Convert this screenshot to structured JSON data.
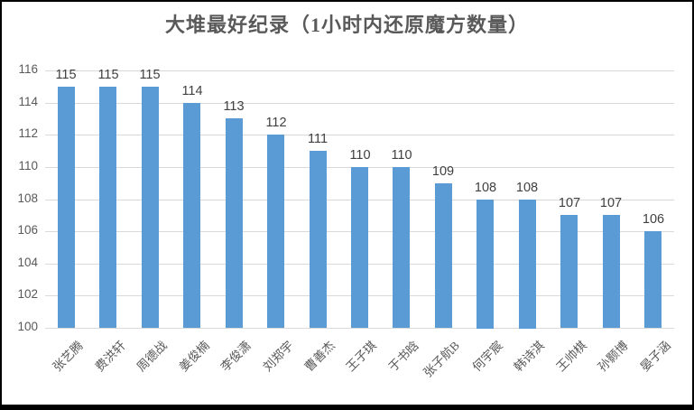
{
  "frame": {
    "border_color": "#000000",
    "background_color": "#ffffff"
  },
  "chart_data": {
    "type": "bar",
    "title": "大堆最好纪录（1小时内还原魔方数量）",
    "categories": [
      "张艺腾",
      "费洪轩",
      "周德战",
      "姜俊楠",
      "李俊潇",
      "刘郑宇",
      "曹善杰",
      "王子琪",
      "于书晗",
      "张子航B",
      "何宇宸",
      "韩诗淇",
      "王帅棋",
      "孙颢博",
      "晏子涵"
    ],
    "values": [
      115,
      115,
      115,
      114,
      113,
      112,
      111,
      110,
      110,
      109,
      108,
      108,
      107,
      107,
      106
    ],
    "data_labels": [
      115,
      115,
      115,
      114,
      113,
      112,
      111,
      110,
      110,
      109,
      108,
      108,
      107,
      107,
      106
    ],
    "xlabel": "",
    "ylabel": "",
    "ylim": [
      100,
      116
    ],
    "ytick_step": 2,
    "yticks": [
      100,
      102,
      104,
      106,
      108,
      110,
      112,
      114,
      116
    ],
    "grid": true,
    "legend_position": "none",
    "bar_color": "#5b9bd5",
    "gridline_color": "#d9d9d9",
    "title_color": "#595959",
    "data_label_color": "#404040",
    "tick_label_color": "#595959",
    "category_label_color": "#595959"
  }
}
